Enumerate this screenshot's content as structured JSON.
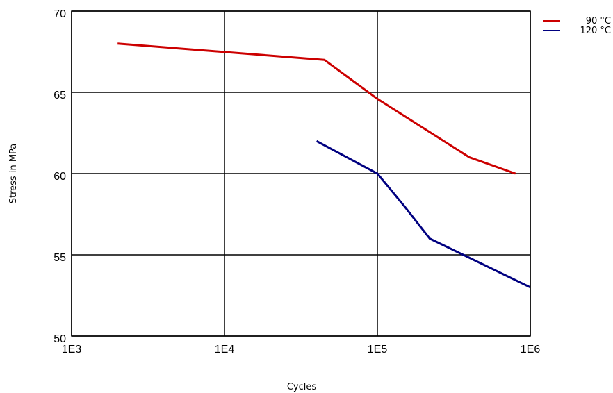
{
  "chart_data": {
    "type": "line",
    "title": "",
    "xlabel": "Cycles",
    "ylabel": "Stress in MPa",
    "x_scale": "log",
    "xlim": [
      1000,
      1000000
    ],
    "ylim": [
      50,
      70
    ],
    "x_ticks": [
      {
        "value": 1000,
        "label": "1E3"
      },
      {
        "value": 10000,
        "label": "1E4"
      },
      {
        "value": 100000,
        "label": "1E5"
      },
      {
        "value": 1000000,
        "label": "1E6"
      }
    ],
    "y_ticks": [
      {
        "value": 50,
        "label": "50"
      },
      {
        "value": 55,
        "label": "55"
      },
      {
        "value": 60,
        "label": "60"
      },
      {
        "value": 65,
        "label": "65"
      },
      {
        "value": 70,
        "label": "70"
      }
    ],
    "grid": true,
    "legend_position": "top-right, outside plot",
    "series": [
      {
        "name": "90 °C",
        "color": "#cc0000",
        "points": [
          [
            2000,
            68
          ],
          [
            45000,
            67
          ],
          [
            100000,
            64.6
          ],
          [
            400000,
            61
          ],
          [
            800000,
            60
          ]
        ]
      },
      {
        "name": "120 °C",
        "color": "#000080",
        "points": [
          [
            40000,
            62
          ],
          [
            100000,
            60
          ],
          [
            150000,
            58
          ],
          [
            220000,
            56
          ],
          [
            1000000,
            53
          ]
        ]
      }
    ]
  }
}
